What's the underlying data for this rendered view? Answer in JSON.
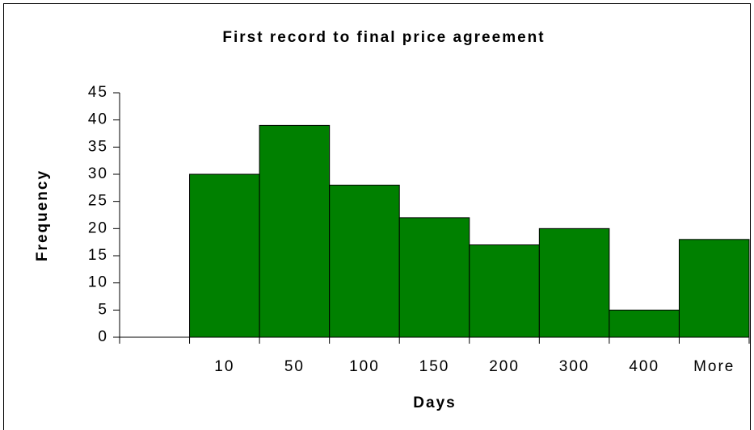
{
  "chart_data": {
    "type": "bar",
    "title": "First record to final price agreement",
    "x_label": "Days",
    "y_label": "Frequency",
    "categories": [
      null,
      "10",
      "50",
      "100",
      "150",
      "200",
      "300",
      "400",
      "More"
    ],
    "values": [
      0,
      30,
      39,
      28,
      22,
      17,
      20,
      5,
      18
    ],
    "color": "#008000",
    "ylim": [
      0,
      45
    ],
    "yticks": [
      0,
      5,
      10,
      15,
      20,
      25,
      30,
      35,
      40,
      45
    ],
    "grid": false
  }
}
